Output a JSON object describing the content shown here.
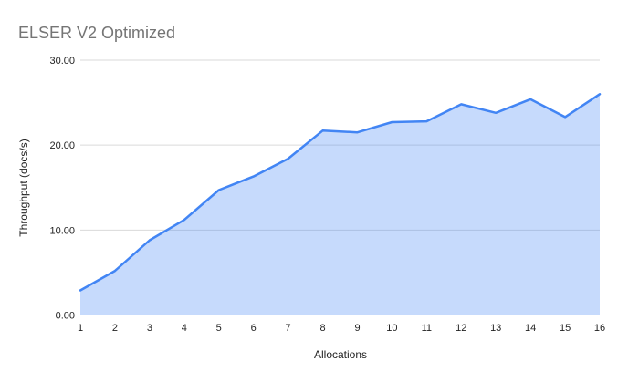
{
  "chart_data": {
    "type": "area",
    "title": "ELSER V2 Optimized",
    "xlabel": "Allocations",
    "ylabel": "Throughput (docs/s)",
    "x": [
      1,
      2,
      3,
      4,
      5,
      6,
      7,
      8,
      9,
      10,
      11,
      12,
      13,
      14,
      15,
      16
    ],
    "values": [
      2.9,
      5.2,
      8.8,
      11.2,
      14.7,
      16.3,
      18.4,
      21.7,
      21.5,
      22.7,
      22.8,
      24.8,
      23.8,
      25.4,
      23.3,
      26.0
    ],
    "xtick_labels": [
      "1",
      "2",
      "3",
      "4",
      "5",
      "6",
      "7",
      "8",
      "9",
      "10",
      "11",
      "12",
      "13",
      "14",
      "15",
      "16"
    ],
    "yticks": [
      0,
      10,
      20,
      30
    ],
    "ytick_labels": [
      "0.00",
      "10.00",
      "20.00",
      "30.00"
    ],
    "ylim": [
      0,
      30
    ],
    "grid": true,
    "legend": "none",
    "colors": {
      "line": "#4285f4",
      "fill": "#4285f4",
      "fill_opacity": 0.3,
      "gridline": "#dadada",
      "axis_baseline": "#333333",
      "tick_text": "#222222",
      "axis_title_text": "#222222",
      "title_text": "#757575",
      "background": "#ffffff"
    }
  }
}
